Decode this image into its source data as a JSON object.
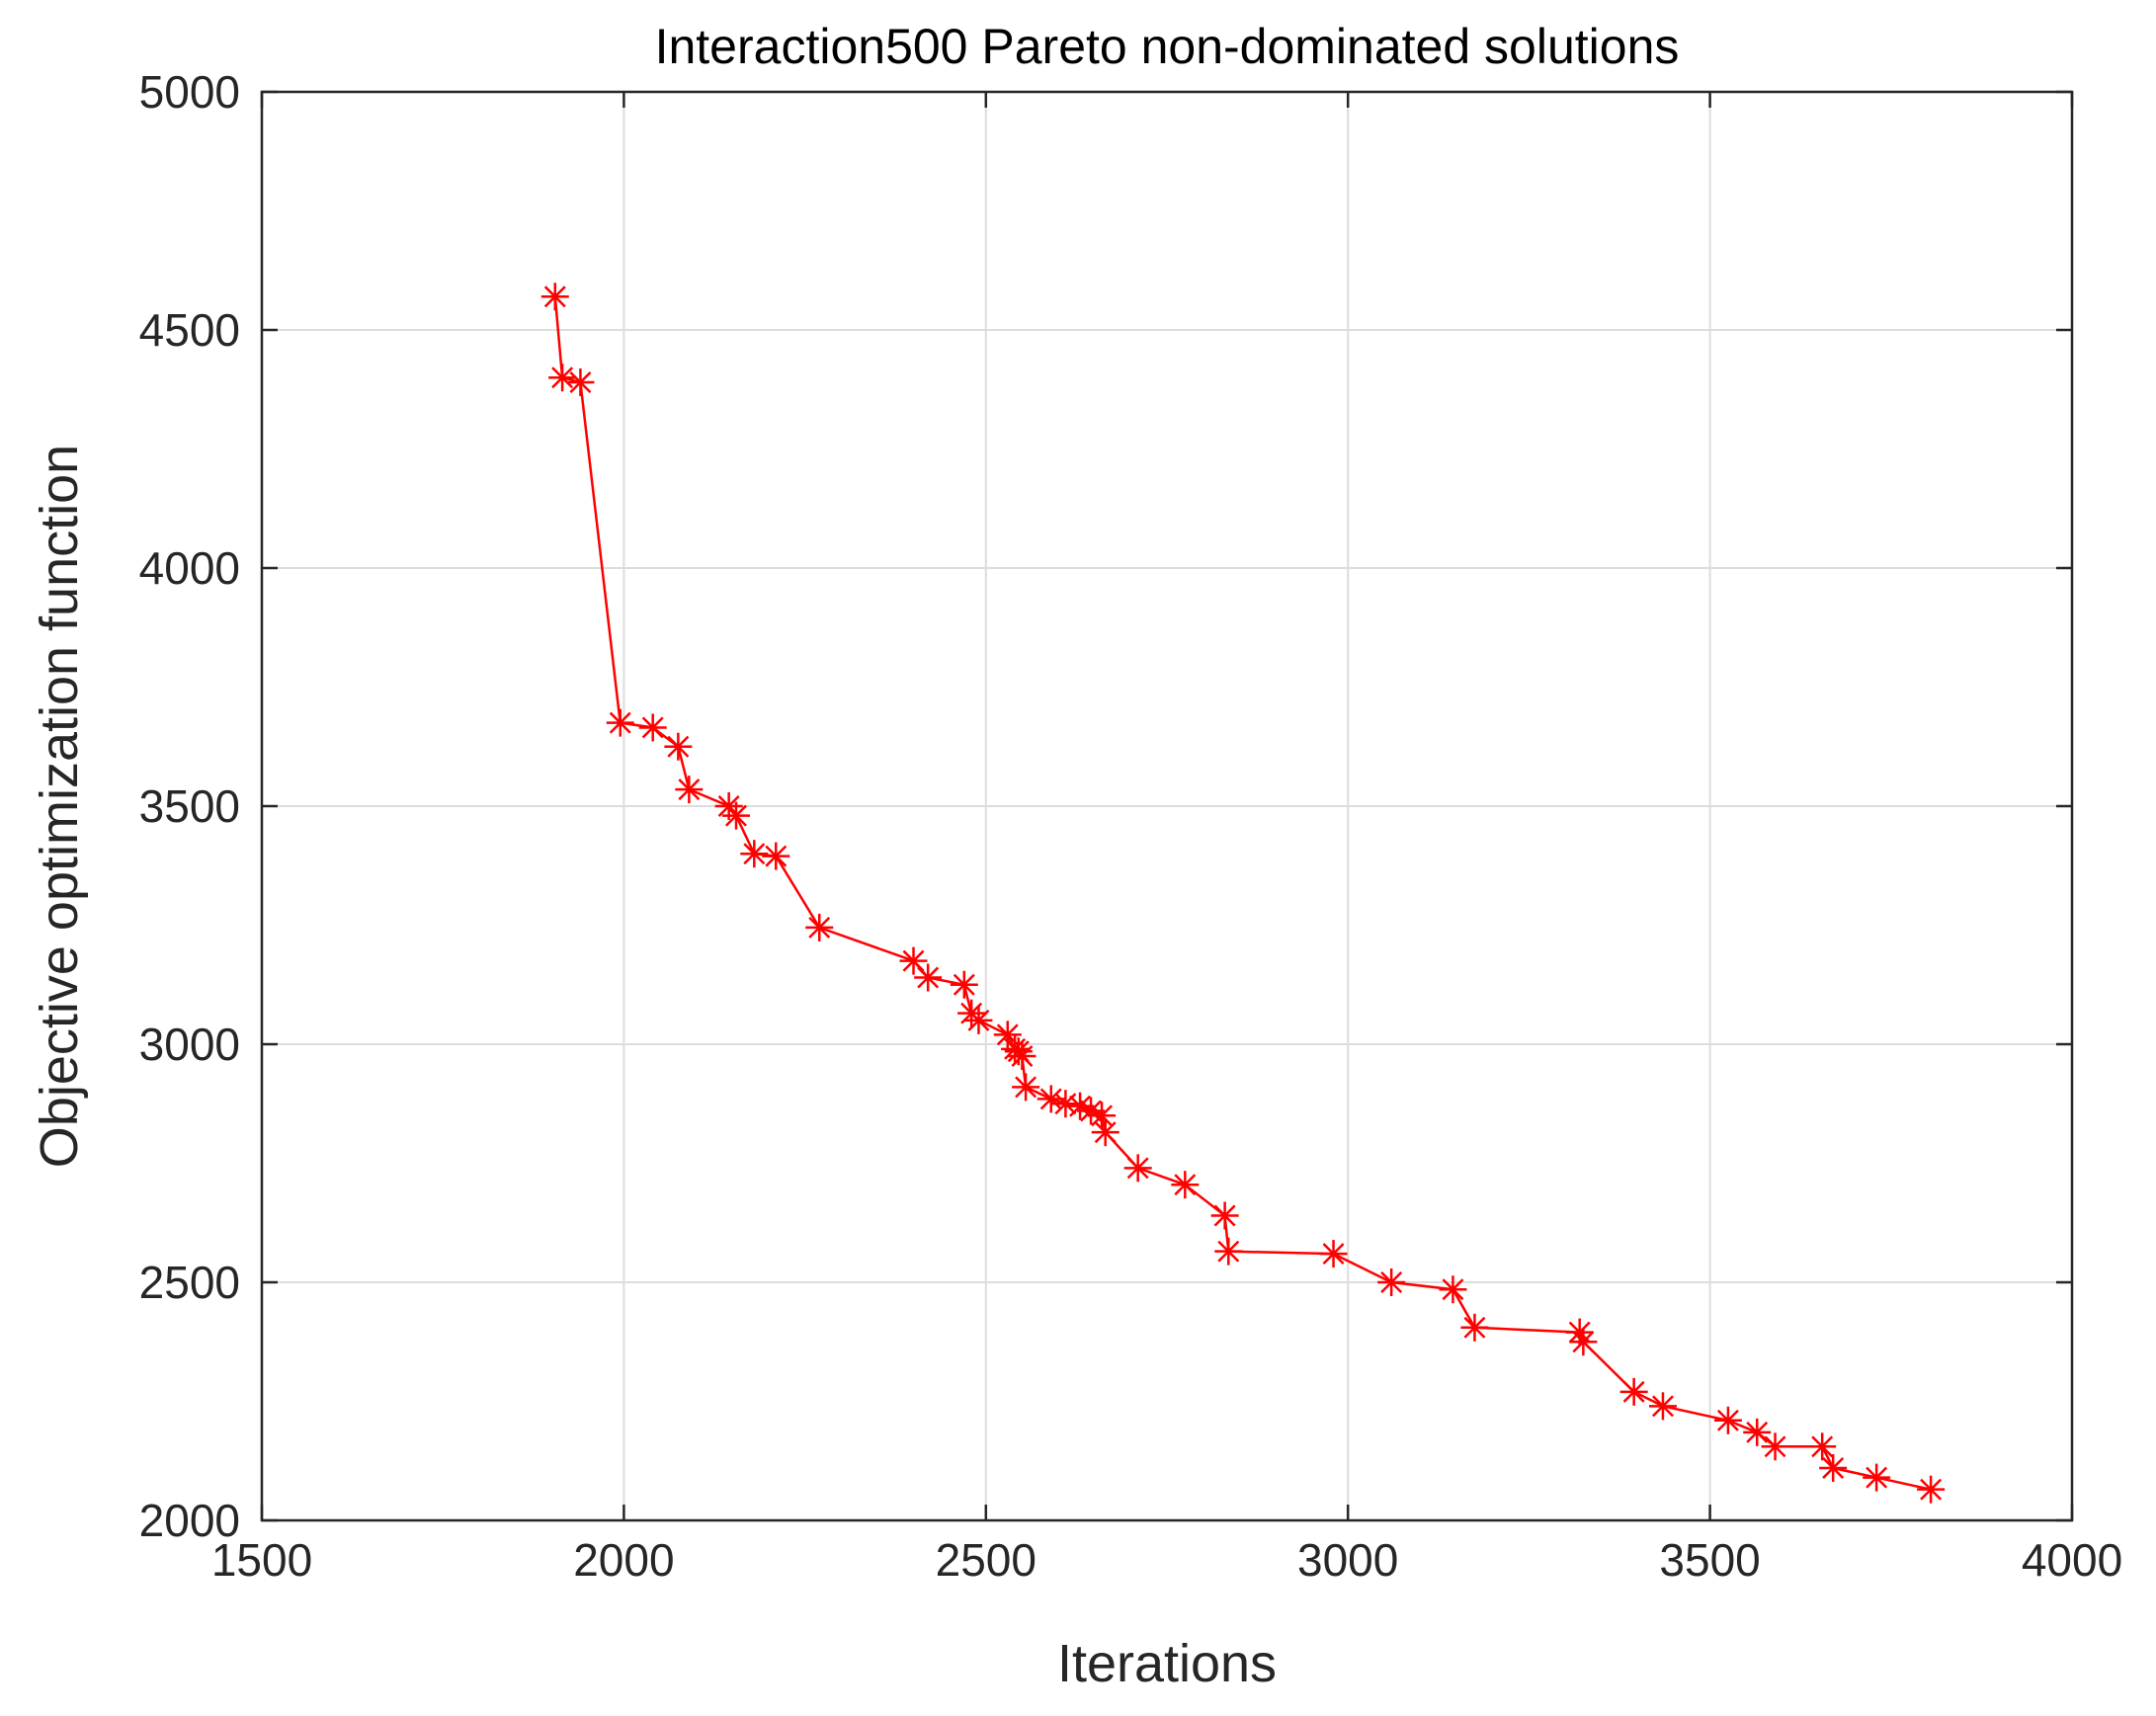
{
  "chart_data": {
    "type": "line",
    "title": "Interaction500 Pareto non-dominated solutions",
    "xlabel": "Iterations",
    "ylabel": "Objective optimization function",
    "xlim": [
      1500,
      4000
    ],
    "ylim": [
      2000,
      5000
    ],
    "xticks": [
      1500,
      2000,
      2500,
      3000,
      3500,
      4000
    ],
    "yticks": [
      2000,
      2500,
      3000,
      3500,
      4000,
      4500,
      5000
    ],
    "grid": true,
    "marker": "asterisk",
    "color": "#ff0000",
    "series": [
      {
        "x": [
          1905,
          1915,
          1940,
          1995,
          2040,
          2075,
          2090,
          2145,
          2155,
          2180,
          2210,
          2270,
          2400,
          2420,
          2470,
          2480,
          2490,
          2530,
          2540,
          2545,
          2550,
          2555,
          2590,
          2610,
          2630,
          2645,
          2660,
          2665,
          2710,
          2775,
          2830,
          2835,
          2980,
          3060,
          3145,
          3175,
          3320,
          3325,
          3395,
          3435,
          3525,
          3565,
          3590,
          3655,
          3670,
          3730,
          3805
        ],
        "y": [
          4570,
          4400,
          4390,
          3675,
          3665,
          3625,
          3535,
          3500,
          3480,
          3400,
          3395,
          3245,
          3175,
          3140,
          3125,
          3065,
          3050,
          3020,
          2990,
          2985,
          2975,
          2910,
          2885,
          2875,
          2870,
          2860,
          2850,
          2815,
          2740,
          2705,
          2640,
          2565,
          2560,
          2500,
          2485,
          2405,
          2395,
          2375,
          2270,
          2240,
          2210,
          2185,
          2155,
          2155,
          2110,
          2090,
          2065
        ]
      }
    ]
  }
}
